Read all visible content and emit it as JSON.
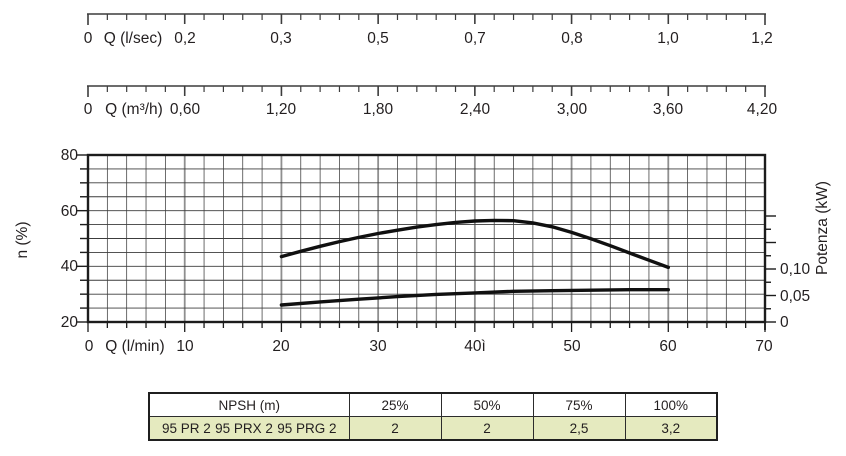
{
  "axes": {
    "flow_lsec": {
      "zero_label": "0",
      "unit_label": "Q (l/sec)",
      "tick_labels": [
        "0,2",
        "0,3",
        "0,5",
        "0,7",
        "0,8",
        "1,0",
        "1,2"
      ]
    },
    "flow_m3h": {
      "zero_label": "0",
      "unit_label": "Q (m³/h)",
      "tick_labels": [
        "0,60",
        "1,20",
        "1,80",
        "2,40",
        "3,00",
        "3,60",
        "4,20"
      ]
    },
    "flow_lmin": {
      "zero_label": "0",
      "unit_label": "Q (l/min)",
      "tick_labels": [
        "10",
        "20",
        "30",
        "40ì",
        "50",
        "60",
        "70"
      ]
    },
    "efficiency": {
      "title": "n (%)",
      "tick_labels": [
        "80",
        "60",
        "40",
        "20"
      ]
    },
    "power": {
      "title": "Potenza (kW)",
      "tick_labels": [
        "0,10",
        "0,05",
        "0"
      ]
    }
  },
  "chart_data": {
    "type": "line",
    "title": "",
    "xlabel": "Q (l/min)",
    "x_range": [
      0,
      70
    ],
    "x_grid_step": 2,
    "alt_x_scales": [
      {
        "label": "Q (l/sec)",
        "tick_values": [
          0,
          0.2,
          0.3,
          0.5,
          0.7,
          0.8,
          1.0,
          1.2
        ],
        "note": "ticks evenly spaced at every 10 l/min"
      },
      {
        "label": "Q (m³/h)",
        "tick_values": [
          0,
          0.6,
          1.2,
          1.8,
          2.4,
          3.0,
          3.6,
          4.2
        ]
      }
    ],
    "y_left": {
      "label": "n (%)",
      "range": [
        20,
        80
      ],
      "grid_step": 5,
      "labeled_ticks": [
        20,
        40,
        60,
        80
      ]
    },
    "y_right": {
      "label": "Potenza (kW)",
      "range": [
        0,
        0.315
      ],
      "labeled_ticks": [
        0,
        0.05,
        0.1
      ],
      "minor_tick_step": 0.025,
      "ticks_drawn_up_to": 0.2
    },
    "grid": true,
    "legend": false,
    "series": [
      {
        "name": "efficiency n (%)",
        "axis": "left",
        "points": [
          [
            20,
            43.5
          ],
          [
            22,
            45.4
          ],
          [
            24,
            47.2
          ],
          [
            26,
            48.9
          ],
          [
            28,
            50.4
          ],
          [
            30,
            51.8
          ],
          [
            32,
            53.0
          ],
          [
            34,
            54.1
          ],
          [
            36,
            55.0
          ],
          [
            38,
            55.8
          ],
          [
            40,
            56.3
          ],
          [
            42,
            56.5
          ],
          [
            44,
            56.4
          ],
          [
            46,
            55.6
          ],
          [
            48,
            54.2
          ],
          [
            50,
            52.2
          ],
          [
            52,
            49.9
          ],
          [
            54,
            47.4
          ],
          [
            56,
            44.8
          ],
          [
            58,
            42.2
          ],
          [
            60,
            39.6
          ]
        ]
      },
      {
        "name": "potenza (kW)",
        "axis": "right",
        "points": [
          [
            20,
            0.032
          ],
          [
            24,
            0.038
          ],
          [
            28,
            0.043
          ],
          [
            32,
            0.048
          ],
          [
            36,
            0.052
          ],
          [
            40,
            0.055
          ],
          [
            44,
            0.058
          ],
          [
            48,
            0.059
          ],
          [
            52,
            0.06
          ],
          [
            56,
            0.061
          ],
          [
            60,
            0.061
          ]
        ]
      }
    ]
  },
  "table": {
    "header": [
      "NPSH (m)",
      "25%",
      "50%",
      "75%",
      "100%"
    ],
    "models": [
      "95 PR 2",
      "95 PRX 2",
      "95 PRG 2"
    ],
    "values": [
      "2",
      "2",
      "2,5",
      "3,2"
    ]
  },
  "colors": {
    "curve": "#101010",
    "grid": "#3c3c3c",
    "grid_major": "#8f8f8f",
    "frame": "#1c1c1c",
    "table_row_bg": "#e5eabf",
    "text": "#231f20"
  }
}
